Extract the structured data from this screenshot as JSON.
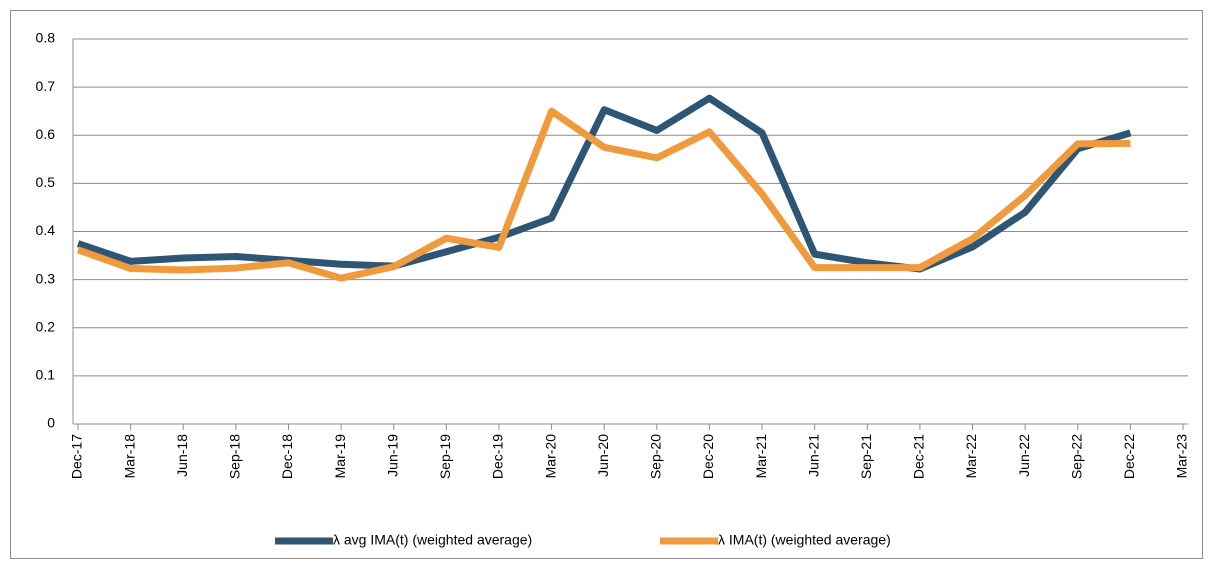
{
  "chart_data": {
    "type": "line",
    "categories": [
      "Dec-17",
      "Mar-18",
      "Jun-18",
      "Sep-18",
      "Dec-18",
      "Mar-19",
      "Jun-19",
      "Sep-19",
      "Dec-19",
      "Mar-20",
      "Jun-20",
      "Sep-20",
      "Dec-20",
      "Mar-21",
      "Jun-21",
      "Sep-21",
      "Dec-21",
      "Mar-22",
      "Jun-22",
      "Sep-22",
      "Dec-22",
      "Mar-23"
    ],
    "series": [
      {
        "name": "λ avg IMA(t) (weighted average)",
        "color": "#2e5573",
        "values": [
          0.375,
          0.338,
          0.345,
          0.348,
          0.34,
          0.332,
          0.328,
          0.358,
          0.388,
          0.428,
          0.653,
          0.61,
          0.677,
          0.605,
          0.353,
          0.335,
          0.322,
          0.368,
          0.44,
          0.572,
          0.605,
          null
        ]
      },
      {
        "name": "λ IMA(t) (weighted average)",
        "color": "#ef9a3c",
        "values": [
          0.362,
          0.323,
          0.32,
          0.324,
          0.335,
          0.303,
          0.327,
          0.386,
          0.367,
          0.65,
          0.575,
          0.553,
          0.607,
          0.478,
          0.325,
          0.325,
          0.325,
          0.385,
          0.475,
          0.582,
          0.583,
          null
        ]
      }
    ],
    "ylim": [
      0,
      0.8
    ],
    "yticks": [
      0,
      0.1,
      0.2,
      0.3,
      0.4,
      0.5,
      0.6,
      0.7,
      0.8
    ],
    "grid": true
  }
}
